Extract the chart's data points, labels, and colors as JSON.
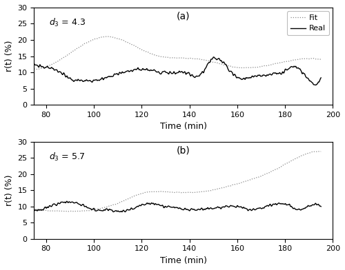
{
  "title_a": "(a)",
  "title_b": "(b)",
  "label_a": "d₃ = 4.3",
  "label_b": "d₃ = 5.7",
  "xlabel": "Time (min)",
  "ylabel": "r(t) (%)",
  "xlim": [
    75,
    200
  ],
  "ylim": [
    0,
    30
  ],
  "xticks": [
    80,
    100,
    120,
    140,
    160,
    180,
    200
  ],
  "yticks": [
    0,
    5,
    10,
    15,
    20,
    25,
    30
  ],
  "legend_fit": "Fit",
  "legend_real": "Real",
  "fit_color": "#888888",
  "real_color": "#000000",
  "background_color": "#ffffff"
}
